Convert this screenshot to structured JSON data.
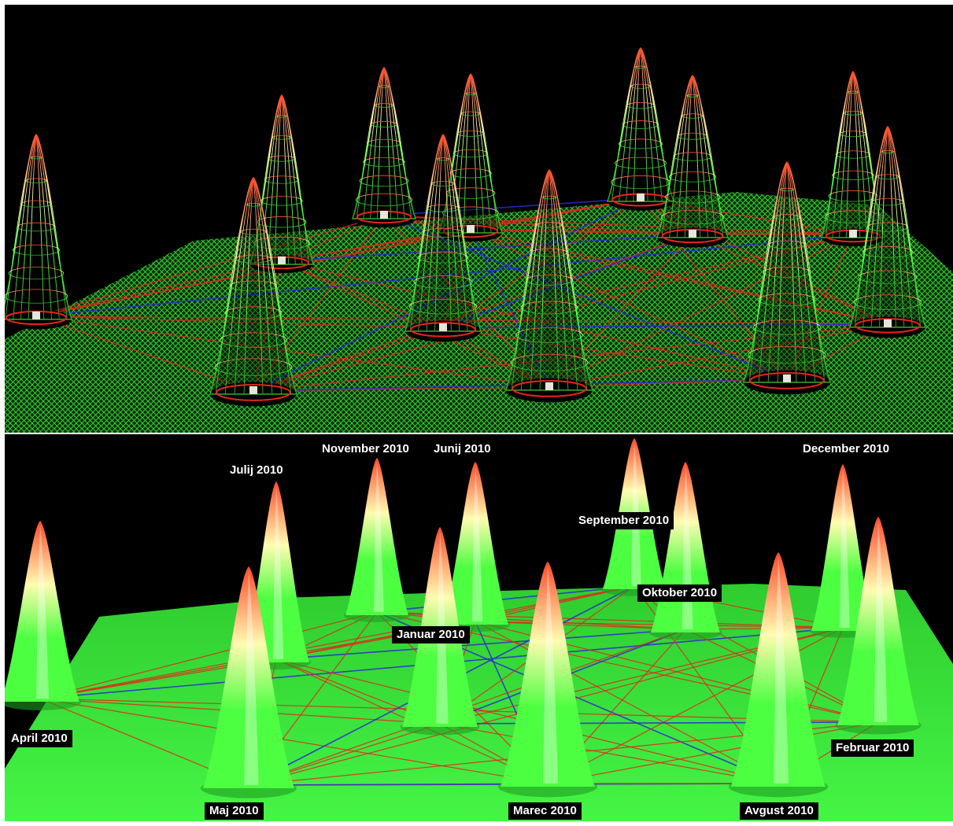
{
  "scene": {
    "colors": {
      "background": "#000000",
      "plane": "#39e83a",
      "mesh_plane": "#2fd42a",
      "peak_base": "#4cff40",
      "peak_mid": "#fffbb0",
      "peak_top": "#ff4a2a",
      "link_red": "#e8231b",
      "link_blue": "#2a2ad8"
    },
    "views": [
      "wireframe",
      "shaded"
    ]
  },
  "labels": {
    "november": "November 2010",
    "junij": "Junij 2010",
    "december": "December 2010",
    "julij": "Julij 2010",
    "september": "September 2010",
    "oktober": "Oktober 2010",
    "januar": "Januar 2010",
    "april": "April 2010",
    "februar": "Februar 2010",
    "maj": "Maj 2010",
    "marec": "Marec 2010",
    "avgust": "Avgust 2010"
  }
}
